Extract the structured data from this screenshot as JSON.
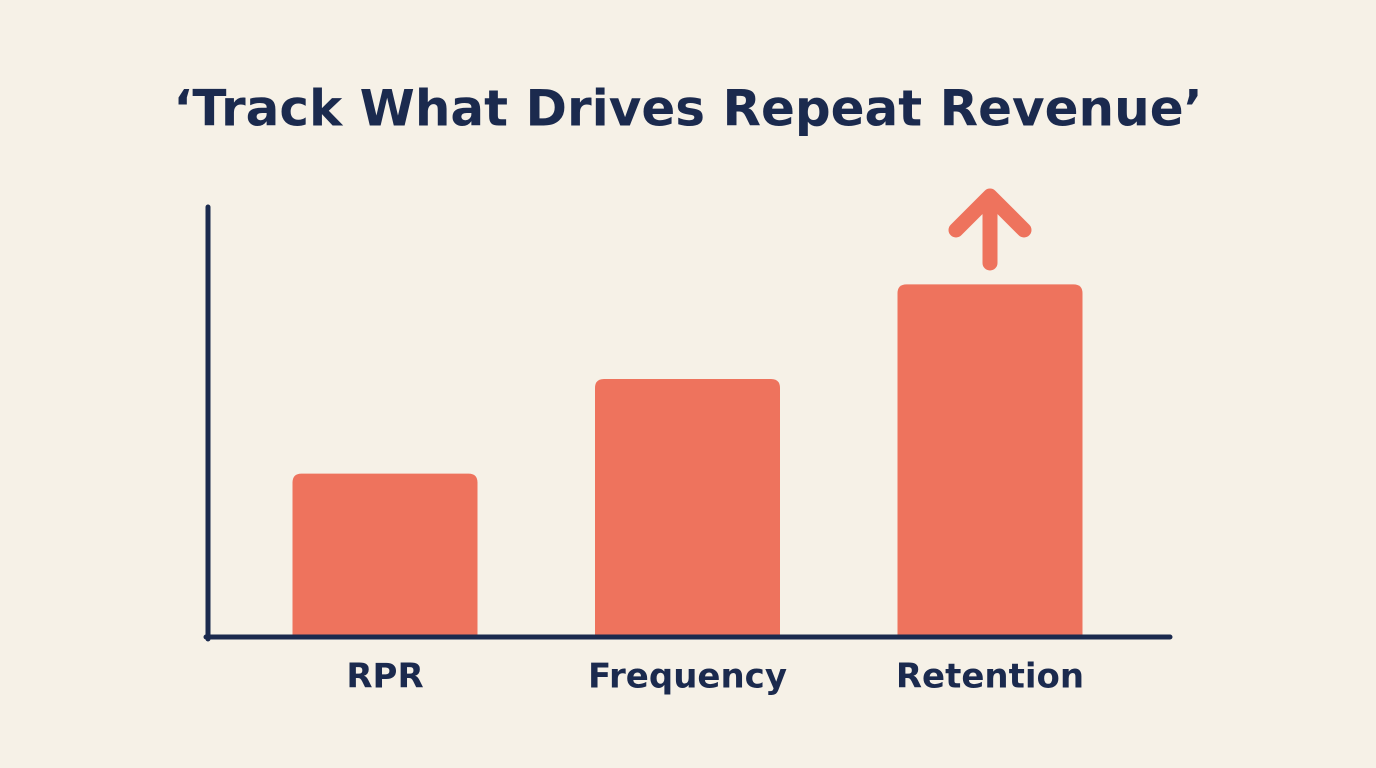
{
  "chart_data": {
    "type": "bar",
    "title": "‘Track What Drives Repeat Revenue’",
    "categories": [
      "RPR",
      "Frequency",
      "Retention"
    ],
    "values": [
      38,
      60,
      82
    ],
    "color": "#ee735d",
    "ylim": [
      0,
      100
    ]
  }
}
